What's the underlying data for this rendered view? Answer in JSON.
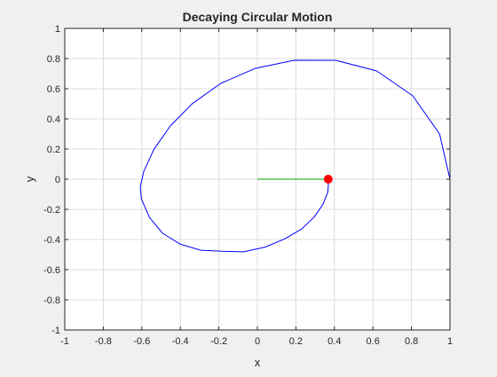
{
  "chart_data": {
    "type": "line",
    "title": "Decaying Circular Motion",
    "xlabel": "x",
    "ylabel": "y",
    "xlim": [
      -1,
      1
    ],
    "ylim": [
      -1,
      1
    ],
    "xticks": [
      -1,
      -0.8,
      -0.6,
      -0.4,
      -0.2,
      0,
      0.2,
      0.4,
      0.6,
      0.8,
      1
    ],
    "yticks": [
      -1,
      -0.8,
      -0.6,
      -0.4,
      -0.2,
      0,
      0.2,
      0.4,
      0.6,
      0.8,
      1
    ],
    "xtick_labels": [
      "-1",
      "-0.8",
      "-0.6",
      "-0.4",
      "-0.2",
      "0",
      "0.2",
      "0.4",
      "0.6",
      "0.8",
      "1"
    ],
    "ytick_labels": [
      "-1",
      "-0.8",
      "-0.6",
      "-0.4",
      "-0.2",
      "0",
      "0.2",
      "0.4",
      "0.6",
      "0.8",
      "1"
    ],
    "grid": true,
    "series": [
      {
        "kind": "spiral",
        "color": "#0000ff",
        "points": [
          [
            1.0,
            0.0
          ],
          [
            0.946,
            0.3
          ],
          [
            0.807,
            0.553
          ],
          [
            0.619,
            0.718
          ],
          [
            0.407,
            0.788
          ],
          [
            0.192,
            0.789
          ],
          [
            -0.011,
            0.735
          ],
          [
            -0.19,
            0.635
          ],
          [
            -0.338,
            0.501
          ],
          [
            -0.452,
            0.353
          ],
          [
            -0.537,
            0.199
          ],
          [
            -0.59,
            0.052
          ],
          [
            -0.608,
            -0.052
          ],
          [
            -0.602,
            -0.133
          ],
          [
            -0.56,
            -0.254
          ],
          [
            -0.492,
            -0.359
          ],
          [
            -0.399,
            -0.432
          ],
          [
            -0.293,
            -0.471
          ],
          [
            -0.18,
            -0.478
          ],
          [
            -0.071,
            -0.482
          ],
          [
            0.041,
            -0.45
          ],
          [
            0.142,
            -0.396
          ],
          [
            0.23,
            -0.33
          ],
          [
            0.295,
            -0.251
          ],
          [
            0.341,
            -0.166
          ],
          [
            0.366,
            -0.085
          ],
          [
            0.369,
            -0.03
          ],
          [
            0.368,
            0.0
          ]
        ]
      },
      {
        "kind": "radius",
        "color": "#00a000",
        "points": [
          [
            0.0,
            0.0
          ],
          [
            0.368,
            0.0
          ]
        ]
      }
    ],
    "marker": {
      "x": 0.368,
      "y": 0.0,
      "color": "#ff0000"
    }
  }
}
